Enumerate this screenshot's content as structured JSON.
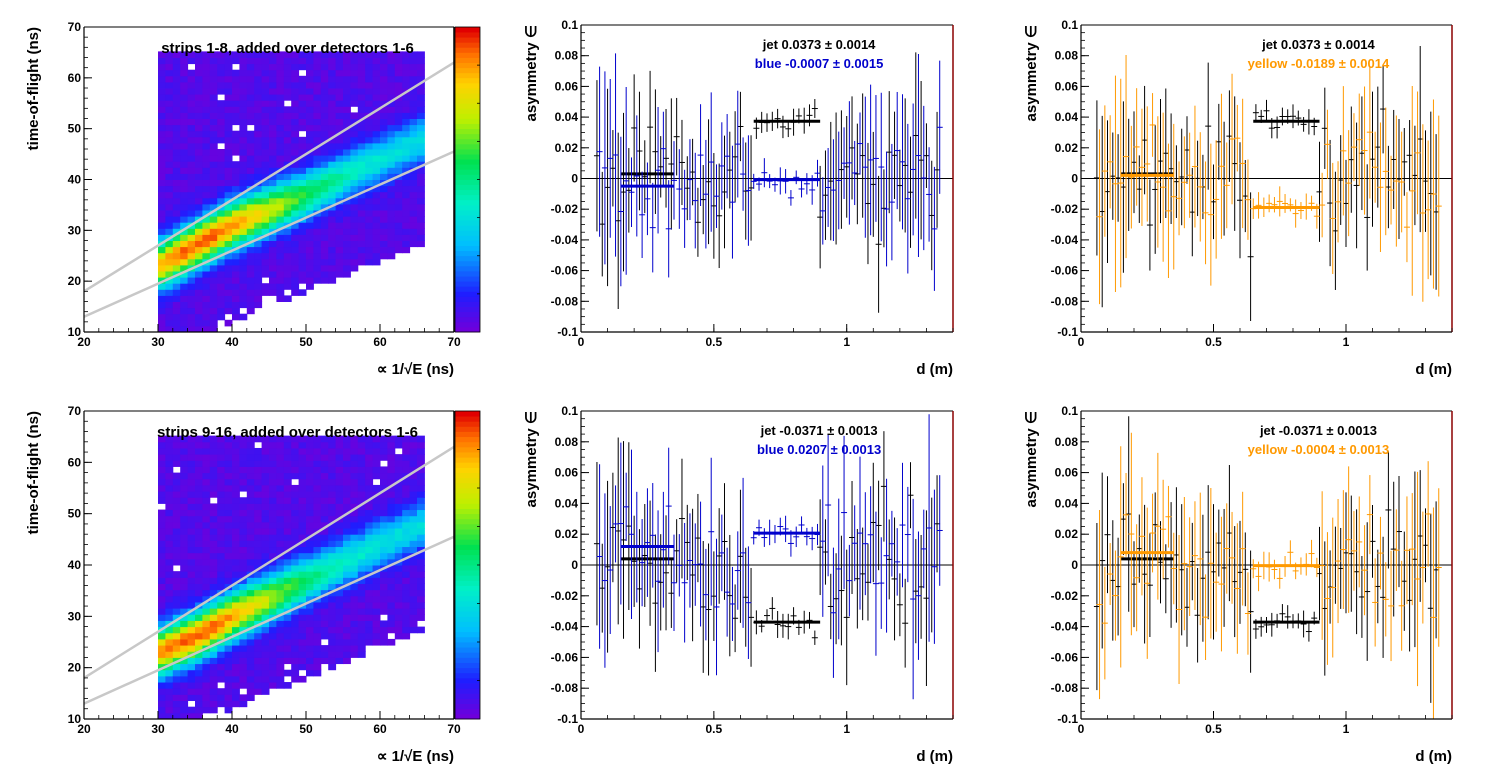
{
  "colors": {
    "jet": "#000000",
    "blue": "#0000cc",
    "yellow": "#ff9900",
    "frame_right": "#8b0000",
    "cut_lines": "#c8c8c8",
    "background": "#ffffff"
  },
  "chart_data": [
    {
      "id": "hist-top",
      "type": "heatmap",
      "title": "strips 1-8, added over detectors 1-6",
      "xlabel": "∝ 1/√E (ns)",
      "ylabel": "time-of-flight (ns)",
      "xlim": [
        20,
        70
      ],
      "ylim": [
        10,
        70
      ],
      "xticks": [
        "20",
        "30",
        "40",
        "50",
        "60",
        "70"
      ],
      "yticks": [
        "10",
        "20",
        "30",
        "40",
        "50",
        "60",
        "70"
      ],
      "colorbar": "rainbow palette, blue (low) to red (high)",
      "support": {
        "xmin": 30,
        "xmax": 66,
        "ymin": 10,
        "ymax": 65
      },
      "ridge": {
        "x": [
          30,
          35,
          40,
          50,
          60,
          66
        ],
        "y": [
          23,
          27,
          31,
          37,
          44,
          48
        ]
      },
      "peak": {
        "x": 36,
        "y": 27
      },
      "cut_lines": [
        {
          "x": [
            20,
            70
          ],
          "y": [
            18,
            63
          ]
        },
        {
          "x": [
            20,
            70
          ],
          "y": [
            13,
            45.5
          ]
        }
      ]
    },
    {
      "id": "asym-blue-top",
      "type": "scatter",
      "xlabel": "d (m)",
      "ylabel": "asymmetry ∈",
      "xlim": [
        0,
        1.4
      ],
      "ylim": [
        -0.1,
        0.1
      ],
      "xticks": [
        "0",
        "0.5",
        "1"
      ],
      "yticks": [
        "-0.1",
        "-0.08",
        "-0.06",
        "-0.04",
        "-0.02",
        "0",
        "0.02",
        "0.04",
        "0.06",
        "0.08",
        "0.1"
      ],
      "legend": [
        {
          "text": "jet  0.0373 ± 0.0014",
          "color": "#000000"
        },
        {
          "text": "blue -0.0007 ± 0.0015",
          "color": "#0000cc"
        }
      ],
      "series": [
        {
          "color": "#000000",
          "x_range": [
            0.06,
            1.35
          ],
          "step": 0.02,
          "sigma": 0.03,
          "err_range": [
            0.02,
            0.045
          ],
          "segments": [
            {
              "x": [
                0.15,
                0.35
              ],
              "y": 0.003
            },
            {
              "x": [
                0.65,
                0.9
              ],
              "y": 0.0373
            }
          ]
        },
        {
          "color": "#0000cc",
          "x_range": [
            0.07,
            1.36
          ],
          "step": 0.02,
          "sigma": 0.03,
          "err_range": [
            0.02,
            0.05
          ],
          "segments": [
            {
              "x": [
                0.15,
                0.35
              ],
              "y": -0.005
            },
            {
              "x": [
                0.65,
                0.9
              ],
              "y": -0.0007
            }
          ]
        }
      ]
    },
    {
      "id": "asym-yellow-top",
      "type": "scatter",
      "xlabel": "d (m)",
      "ylabel": "asymmetry ∈",
      "xlim": [
        0,
        1.4
      ],
      "ylim": [
        -0.1,
        0.1
      ],
      "xticks": [
        "0",
        "0.5",
        "1"
      ],
      "yticks": [
        "-0.1",
        "-0.08",
        "-0.06",
        "-0.04",
        "-0.02",
        "0",
        "0.02",
        "0.04",
        "0.06",
        "0.08",
        "0.1"
      ],
      "legend": [
        {
          "text": "jet  0.0373 ± 0.0014",
          "color": "#000000"
        },
        {
          "text": "yellow -0.0189 ± 0.0014",
          "color": "#ff9900"
        }
      ],
      "series": [
        {
          "color": "#000000",
          "x_range": [
            0.06,
            1.35
          ],
          "step": 0.02,
          "sigma": 0.03,
          "err_range": [
            0.02,
            0.045
          ],
          "segments": [
            {
              "x": [
                0.15,
                0.35
              ],
              "y": 0.003
            },
            {
              "x": [
                0.65,
                0.9
              ],
              "y": 0.0373
            }
          ]
        },
        {
          "color": "#ff9900",
          "x_range": [
            0.07,
            1.36
          ],
          "step": 0.02,
          "sigma": 0.03,
          "err_range": [
            0.02,
            0.05
          ],
          "segments": [
            {
              "x": [
                0.15,
                0.35
              ],
              "y": 0.002
            },
            {
              "x": [
                0.65,
                0.9
              ],
              "y": -0.0189
            }
          ]
        }
      ]
    },
    {
      "id": "hist-bottom",
      "type": "heatmap",
      "title": "strips 9-16, added over detectors 1-6",
      "xlabel": "∝ 1/√E (ns)",
      "ylabel": "time-of-flight (ns)",
      "xlim": [
        20,
        70
      ],
      "ylim": [
        10,
        70
      ],
      "xticks": [
        "20",
        "30",
        "40",
        "50",
        "60",
        "70"
      ],
      "yticks": [
        "10",
        "20",
        "30",
        "40",
        "50",
        "60",
        "70"
      ],
      "colorbar": "rainbow palette, blue (low) to red (high)",
      "support": {
        "xmin": 30,
        "xmax": 66,
        "ymin": 10,
        "ymax": 65
      },
      "ridge": {
        "x": [
          30,
          35,
          40,
          50,
          60,
          66
        ],
        "y": [
          23,
          26,
          30,
          37,
          44,
          48
        ]
      },
      "peak": {
        "x": 35,
        "y": 26
      },
      "cut_lines": [
        {
          "x": [
            20,
            70
          ],
          "y": [
            18,
            63
          ]
        },
        {
          "x": [
            20,
            70
          ],
          "y": [
            13,
            45.5
          ]
        }
      ]
    },
    {
      "id": "asym-blue-bottom",
      "type": "scatter",
      "xlabel": "d (m)",
      "ylabel": "asymmetry ∈",
      "xlim": [
        0,
        1.4
      ],
      "ylim": [
        -0.1,
        0.1
      ],
      "xticks": [
        "0",
        "0.5",
        "1"
      ],
      "yticks": [
        "-0.1",
        "-0.08",
        "-0.06",
        "-0.04",
        "-0.02",
        "0",
        "0.02",
        "0.04",
        "0.06",
        "0.08",
        "0.1"
      ],
      "legend": [
        {
          "text": "jet -0.0371 ± 0.0013",
          "color": "#000000"
        },
        {
          "text": "blue  0.0207 ± 0.0013",
          "color": "#0000cc"
        }
      ],
      "series": [
        {
          "color": "#000000",
          "x_range": [
            0.06,
            1.35
          ],
          "step": 0.02,
          "sigma": 0.03,
          "err_range": [
            0.02,
            0.045
          ],
          "segments": [
            {
              "x": [
                0.15,
                0.35
              ],
              "y": 0.004
            },
            {
              "x": [
                0.65,
                0.9
              ],
              "y": -0.0371
            }
          ]
        },
        {
          "color": "#0000cc",
          "x_range": [
            0.07,
            1.36
          ],
          "step": 0.02,
          "sigma": 0.03,
          "err_range": [
            0.02,
            0.05
          ],
          "segments": [
            {
              "x": [
                0.15,
                0.35
              ],
              "y": 0.012
            },
            {
              "x": [
                0.65,
                0.9
              ],
              "y": 0.0207
            }
          ]
        }
      ]
    },
    {
      "id": "asym-yellow-bottom",
      "type": "scatter",
      "xlabel": "d (m)",
      "ylabel": "asymmetry ∈",
      "xlim": [
        0,
        1.4
      ],
      "ylim": [
        -0.1,
        0.1
      ],
      "xticks": [
        "0",
        "0.5",
        "1"
      ],
      "yticks": [
        "-0.1",
        "-0.08",
        "-0.06",
        "-0.04",
        "-0.02",
        "0",
        "0.02",
        "0.04",
        "0.06",
        "0.08",
        "0.1"
      ],
      "legend": [
        {
          "text": "jet -0.0371 ± 0.0013",
          "color": "#000000"
        },
        {
          "text": "yellow -0.0004 ± 0.0013",
          "color": "#ff9900"
        }
      ],
      "series": [
        {
          "color": "#000000",
          "x_range": [
            0.06,
            1.35
          ],
          "step": 0.02,
          "sigma": 0.03,
          "err_range": [
            0.02,
            0.045
          ],
          "segments": [
            {
              "x": [
                0.15,
                0.35
              ],
              "y": 0.004
            },
            {
              "x": [
                0.65,
                0.9
              ],
              "y": -0.0371
            }
          ]
        },
        {
          "color": "#ff9900",
          "x_range": [
            0.07,
            1.36
          ],
          "step": 0.02,
          "sigma": 0.03,
          "err_range": [
            0.02,
            0.05
          ],
          "segments": [
            {
              "x": [
                0.15,
                0.35
              ],
              "y": 0.008
            },
            {
              "x": [
                0.65,
                0.9
              ],
              "y": -0.0004
            }
          ]
        }
      ]
    }
  ]
}
